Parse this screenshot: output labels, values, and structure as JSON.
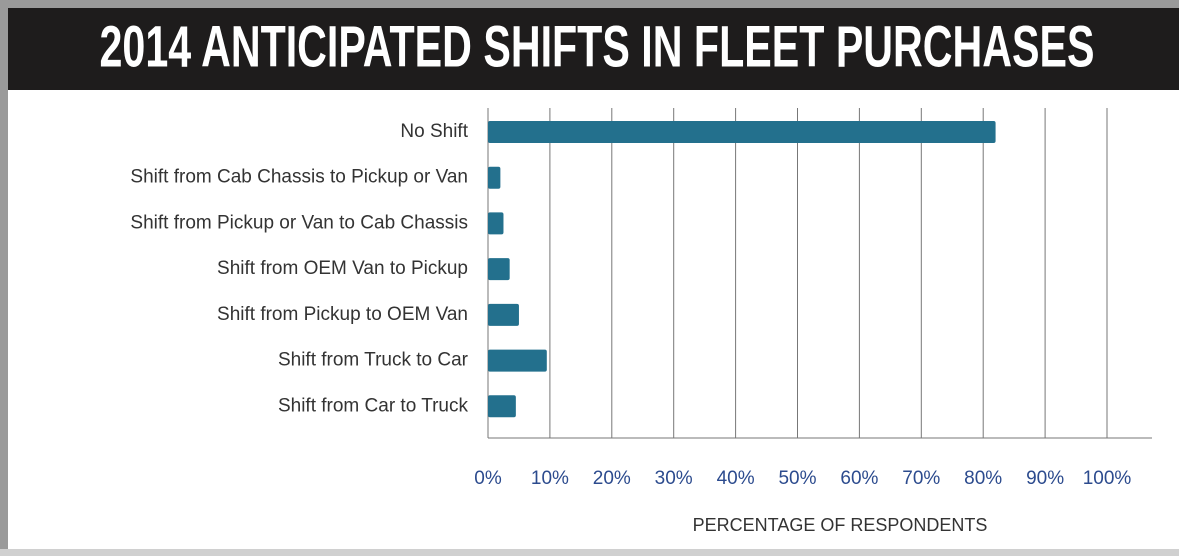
{
  "chart_data": {
    "type": "hbar",
    "title": "2014 ANTICIPATED SHIFTS IN FLEET PURCHASES",
    "categories": [
      "No Shift",
      "Shift from Cab Chassis to Pickup or Van",
      "Shift from Pickup or Van to Cab Chassis",
      "Shift from OEM Van to Pickup",
      "Shift from Pickup to OEM Van",
      "Shift from Truck to Car",
      "Shift from Car to Truck"
    ],
    "values": [
      82,
      2,
      2.5,
      3.5,
      5,
      9.5,
      4.5
    ],
    "color": "#23708d",
    "xlabel": "PERCENTAGE OF RESPONDENTS",
    "xlim": [
      0,
      100
    ],
    "xticks": [
      {
        "value": 0,
        "label": "0%"
      },
      {
        "value": 10,
        "label": "10%"
      },
      {
        "value": 20,
        "label": "20%"
      },
      {
        "value": 30,
        "label": "30%"
      },
      {
        "value": 40,
        "label": "40%"
      },
      {
        "value": 50,
        "label": "50%"
      },
      {
        "value": 60,
        "label": "60%"
      },
      {
        "value": 70,
        "label": "70%"
      },
      {
        "value": 80,
        "label": "80%"
      },
      {
        "value": 90,
        "label": "90%"
      },
      {
        "value": 100,
        "label": "100%"
      }
    ],
    "grid": true
  }
}
